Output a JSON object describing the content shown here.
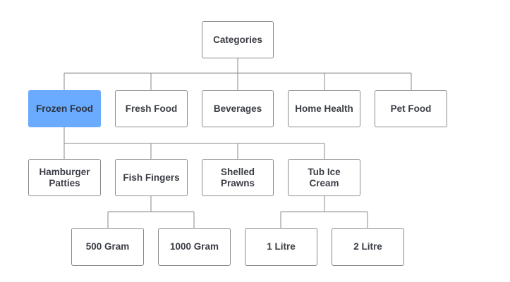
{
  "root": {
    "id": "categories",
    "label": "Categories"
  },
  "categories": [
    {
      "id": "frozen-food",
      "label": "Frozen Food",
      "selected": true
    },
    {
      "id": "fresh-food",
      "label": "Fresh Food"
    },
    {
      "id": "beverages",
      "label": "Beverages"
    },
    {
      "id": "home-health",
      "label": "Home Health"
    },
    {
      "id": "pet-food",
      "label": "Pet Food"
    }
  ],
  "frozen_food_items": [
    {
      "id": "hamburger-patties",
      "label": "Hamburger\nPatties"
    },
    {
      "id": "fish-fingers",
      "label": "Fish Fingers"
    },
    {
      "id": "shelled-prawns",
      "label": "Shelled\nPrawns"
    },
    {
      "id": "tub-ice-cream",
      "label": "Tub Ice\nCream"
    }
  ],
  "fish_fingers_sizes": [
    {
      "id": "500-gram",
      "label": "500 Gram"
    },
    {
      "id": "1000-gram",
      "label": "1000 Gram"
    }
  ],
  "tub_ice_cream_sizes": [
    {
      "id": "1-litre",
      "label": "1 Litre"
    },
    {
      "id": "2-litre",
      "label": "2 Litre"
    }
  ],
  "colors": {
    "selected": "#6aabff",
    "border": "#8a8a8a",
    "line": "#8a8a8a",
    "text": "#3a3d44"
  }
}
